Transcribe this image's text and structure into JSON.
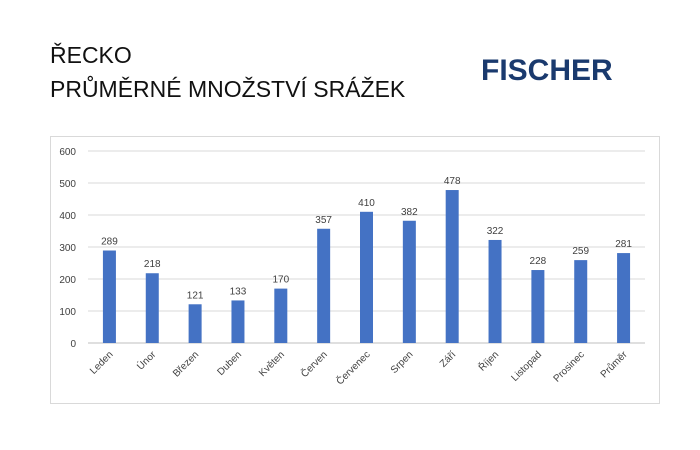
{
  "header": {
    "title_line1": "ŘECKO",
    "title_line2": "PRŮMĚRNÉ MNOŽSTVÍ SRÁŽEK",
    "logo": "FISCHER"
  },
  "chart_data": {
    "type": "bar",
    "categories": [
      "Leden",
      "Únor",
      "Březen",
      "Duben",
      "Květen",
      "Červen",
      "Červenec",
      "Srpen",
      "Září",
      "Říjen",
      "Listopad",
      "Prosinec",
      "Průměr"
    ],
    "values": [
      289,
      218,
      121,
      133,
      170,
      357,
      410,
      382,
      478,
      322,
      228,
      259,
      281
    ],
    "ylim": [
      0,
      600
    ],
    "yticks": [
      0,
      100,
      200,
      300,
      400,
      500,
      600
    ],
    "grid": true,
    "bar_color": "#4472c4",
    "data_labels": true
  }
}
